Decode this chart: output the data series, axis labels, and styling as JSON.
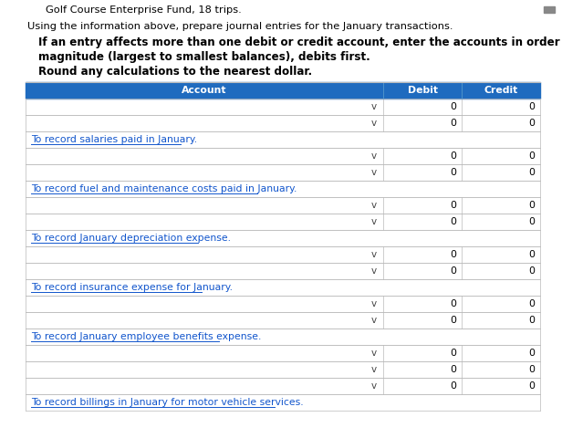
{
  "header_text": "Golf Course Enterprise Fund, 18 trips.",
  "instruction_line1": "Using the information above, prepare journal entries for the January transactions.",
  "instruction_line2": "If an entry affects more than one debit or credit account, enter the accounts in order of",
  "instruction_line3": "magnitude (largest to smallest balances), debits first.",
  "instruction_line4": "Round any calculations to the nearest dollar.",
  "col_headers": [
    "Account",
    "Debit",
    "Credit"
  ],
  "header_bg": "#1F6BBF",
  "header_text_color": "#FFFFFF",
  "table_bg": "#FFFFFF",
  "border_color": "#BBBBBB",
  "memo_text_color": "#1155CC",
  "journal_sections": [
    {
      "data_rows": 2,
      "memo": "To record salaries paid in January."
    },
    {
      "data_rows": 2,
      "memo": "To record fuel and maintenance costs paid in January."
    },
    {
      "data_rows": 2,
      "memo": "To record January depreciation expense."
    },
    {
      "data_rows": 2,
      "memo": "To record insurance expense for January."
    },
    {
      "data_rows": 2,
      "memo": "To record January employee benefits expense."
    },
    {
      "data_rows": 3,
      "memo": "To record billings in January for motor vehicle services."
    }
  ],
  "chevron_char": "v",
  "zero_value": "0",
  "fs_header_text": 8.2,
  "fs_instruction": 8.2,
  "fs_bold": 8.6,
  "fs_table": 7.8,
  "fs_memo": 7.8,
  "scroll_bar_color": "#888888"
}
